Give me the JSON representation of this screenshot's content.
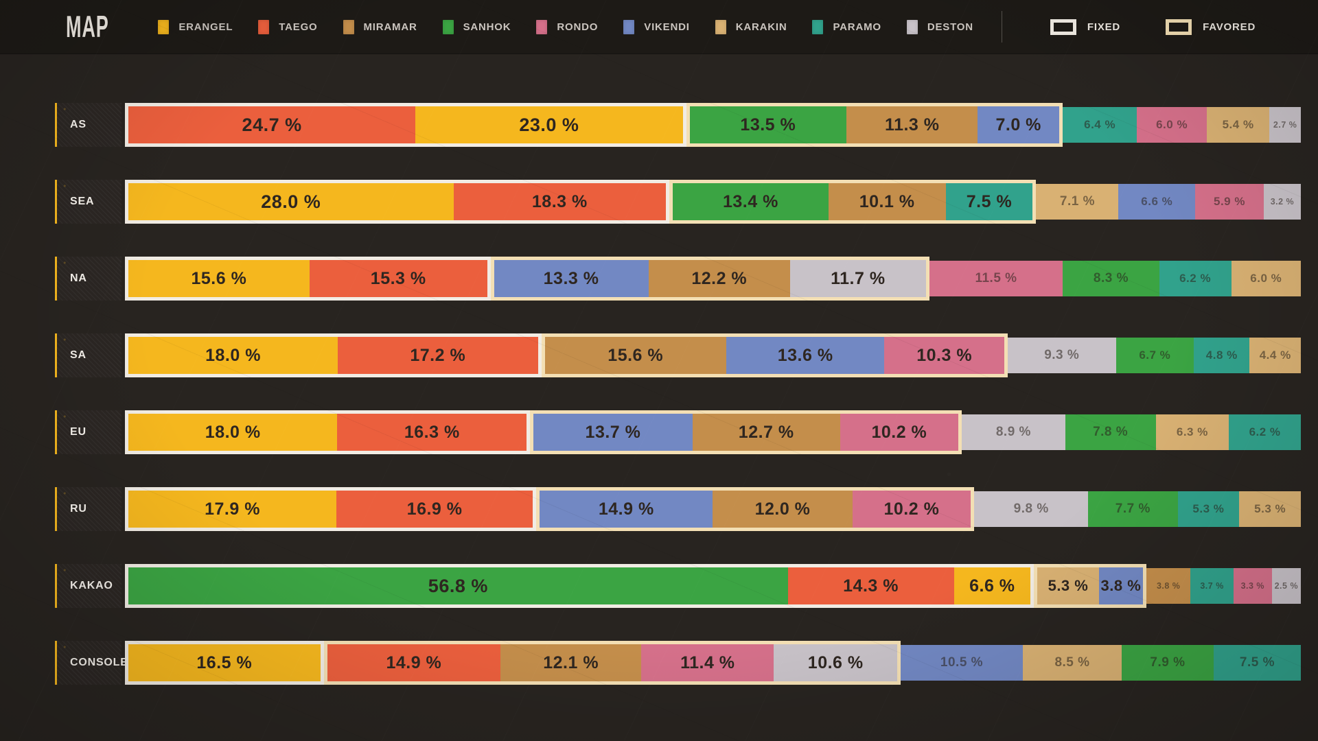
{
  "title": "MAP",
  "legend": {
    "maps": [
      {
        "name": "ERANGEL",
        "color": "#F5B71E"
      },
      {
        "name": "TAEGO",
        "color": "#EB5F3D"
      },
      {
        "name": "MIRAMAR",
        "color": "#C48E4B"
      },
      {
        "name": "SANHOK",
        "color": "#3BA443"
      },
      {
        "name": "RONDO",
        "color": "#D5708A"
      },
      {
        "name": "VIKENDI",
        "color": "#7288C3"
      },
      {
        "name": "KARAKIN",
        "color": "#D9B173"
      },
      {
        "name": "PARAMO",
        "color": "#31A28C"
      },
      {
        "name": "DESTON",
        "color": "#C8C2C8"
      }
    ],
    "indicators": [
      {
        "name": "FIXED",
        "key": "fixed",
        "border_color": "#F1ECE4"
      },
      {
        "name": "FAVORED",
        "key": "favored",
        "border_color": "#F3DFB4"
      }
    ]
  },
  "chart_data": {
    "type": "bar",
    "variant": "horizontal-stacked-100",
    "unit": "%",
    "legend_position": "top",
    "categories": [
      "AS",
      "SEA",
      "NA",
      "SA",
      "EU",
      "RU",
      "KAKAO",
      "CONSOLE"
    ],
    "series_names": [
      "ERANGEL",
      "TAEGO",
      "MIRAMAR",
      "SANHOK",
      "RONDO",
      "VIKENDI",
      "KARAKIN",
      "PARAMO",
      "DESTON"
    ],
    "group_meaning": {
      "fixed": "FIXED",
      "favored": "FAVORED",
      "none": "unhighlighted"
    },
    "rows": [
      {
        "region": "AS",
        "segments": [
          {
            "map": "TAEGO",
            "value": 24.7,
            "group": "fixed"
          },
          {
            "map": "ERANGEL",
            "value": 23.0,
            "group": "fixed"
          },
          {
            "map": "SANHOK",
            "value": 13.5,
            "group": "favored"
          },
          {
            "map": "MIRAMAR",
            "value": 11.3,
            "group": "favored"
          },
          {
            "map": "VIKENDI",
            "value": 7.0,
            "group": "favored"
          },
          {
            "map": "PARAMO",
            "value": 6.4,
            "group": "none"
          },
          {
            "map": "RONDO",
            "value": 6.0,
            "group": "none"
          },
          {
            "map": "KARAKIN",
            "value": 5.4,
            "group": "none"
          },
          {
            "map": "DESTON",
            "value": 2.7,
            "group": "none"
          }
        ]
      },
      {
        "region": "SEA",
        "segments": [
          {
            "map": "ERANGEL",
            "value": 28.0,
            "group": "fixed"
          },
          {
            "map": "TAEGO",
            "value": 18.3,
            "group": "fixed"
          },
          {
            "map": "SANHOK",
            "value": 13.4,
            "group": "favored"
          },
          {
            "map": "MIRAMAR",
            "value": 10.1,
            "group": "favored"
          },
          {
            "map": "PARAMO",
            "value": 7.5,
            "group": "favored"
          },
          {
            "map": "KARAKIN",
            "value": 7.1,
            "group": "none"
          },
          {
            "map": "VIKENDI",
            "value": 6.6,
            "group": "none"
          },
          {
            "map": "RONDO",
            "value": 5.9,
            "group": "none"
          },
          {
            "map": "DESTON",
            "value": 3.2,
            "group": "none"
          }
        ]
      },
      {
        "region": "NA",
        "segments": [
          {
            "map": "ERANGEL",
            "value": 15.6,
            "group": "fixed"
          },
          {
            "map": "TAEGO",
            "value": 15.3,
            "group": "fixed"
          },
          {
            "map": "VIKENDI",
            "value": 13.3,
            "group": "favored"
          },
          {
            "map": "MIRAMAR",
            "value": 12.2,
            "group": "favored"
          },
          {
            "map": "DESTON",
            "value": 11.7,
            "group": "favored"
          },
          {
            "map": "RONDO",
            "value": 11.5,
            "group": "none"
          },
          {
            "map": "SANHOK",
            "value": 8.3,
            "group": "none"
          },
          {
            "map": "PARAMO",
            "value": 6.2,
            "group": "none"
          },
          {
            "map": "KARAKIN",
            "value": 6.0,
            "group": "none"
          }
        ]
      },
      {
        "region": "SA",
        "segments": [
          {
            "map": "ERANGEL",
            "value": 18.0,
            "group": "fixed"
          },
          {
            "map": "TAEGO",
            "value": 17.2,
            "group": "fixed"
          },
          {
            "map": "MIRAMAR",
            "value": 15.6,
            "group": "favored"
          },
          {
            "map": "VIKENDI",
            "value": 13.6,
            "group": "favored"
          },
          {
            "map": "RONDO",
            "value": 10.3,
            "group": "favored"
          },
          {
            "map": "DESTON",
            "value": 9.3,
            "group": "none"
          },
          {
            "map": "SANHOK",
            "value": 6.7,
            "group": "none"
          },
          {
            "map": "PARAMO",
            "value": 4.8,
            "group": "none"
          },
          {
            "map": "KARAKIN",
            "value": 4.4,
            "group": "none"
          }
        ]
      },
      {
        "region": "EU",
        "segments": [
          {
            "map": "ERANGEL",
            "value": 18.0,
            "group": "fixed"
          },
          {
            "map": "TAEGO",
            "value": 16.3,
            "group": "fixed"
          },
          {
            "map": "VIKENDI",
            "value": 13.7,
            "group": "favored"
          },
          {
            "map": "MIRAMAR",
            "value": 12.7,
            "group": "favored"
          },
          {
            "map": "RONDO",
            "value": 10.2,
            "group": "favored"
          },
          {
            "map": "DESTON",
            "value": 8.9,
            "group": "none"
          },
          {
            "map": "SANHOK",
            "value": 7.8,
            "group": "none"
          },
          {
            "map": "KARAKIN",
            "value": 6.3,
            "group": "none"
          },
          {
            "map": "PARAMO",
            "value": 6.2,
            "group": "none"
          }
        ]
      },
      {
        "region": "RU",
        "segments": [
          {
            "map": "ERANGEL",
            "value": 17.9,
            "group": "fixed"
          },
          {
            "map": "TAEGO",
            "value": 16.9,
            "group": "fixed"
          },
          {
            "map": "VIKENDI",
            "value": 14.9,
            "group": "favored"
          },
          {
            "map": "MIRAMAR",
            "value": 12.0,
            "group": "favored"
          },
          {
            "map": "RONDO",
            "value": 10.2,
            "group": "favored"
          },
          {
            "map": "DESTON",
            "value": 9.8,
            "group": "none"
          },
          {
            "map": "SANHOK",
            "value": 7.7,
            "group": "none"
          },
          {
            "map": "PARAMO",
            "value": 5.3,
            "group": "none"
          },
          {
            "map": "KARAKIN",
            "value": 5.3,
            "group": "none"
          }
        ]
      },
      {
        "region": "KAKAO",
        "segments": [
          {
            "map": "SANHOK",
            "value": 56.8,
            "group": "fixed"
          },
          {
            "map": "TAEGO",
            "value": 14.3,
            "group": "fixed"
          },
          {
            "map": "ERANGEL",
            "value": 6.6,
            "group": "fixed"
          },
          {
            "map": "KARAKIN",
            "value": 5.3,
            "group": "favored"
          },
          {
            "map": "VIKENDI",
            "value": 3.8,
            "group": "favored"
          },
          {
            "map": "MIRAMAR",
            "value": 3.8,
            "group": "none"
          },
          {
            "map": "PARAMO",
            "value": 3.7,
            "group": "none"
          },
          {
            "map": "RONDO",
            "value": 3.3,
            "group": "none"
          },
          {
            "map": "DESTON",
            "value": 2.5,
            "group": "none"
          }
        ]
      },
      {
        "region": "CONSOLE",
        "segments": [
          {
            "map": "ERANGEL",
            "value": 16.5,
            "group": "fixed"
          },
          {
            "map": "TAEGO",
            "value": 14.9,
            "group": "favored"
          },
          {
            "map": "MIRAMAR",
            "value": 12.1,
            "group": "favored"
          },
          {
            "map": "RONDO",
            "value": 11.4,
            "group": "favored"
          },
          {
            "map": "DESTON",
            "value": 10.6,
            "group": "favored"
          },
          {
            "map": "VIKENDI",
            "value": 10.5,
            "group": "none"
          },
          {
            "map": "KARAKIN",
            "value": 8.5,
            "group": "none"
          },
          {
            "map": "SANHOK",
            "value": 7.9,
            "group": "none"
          },
          {
            "map": "PARAMO",
            "value": 7.5,
            "group": "none"
          }
        ]
      }
    ]
  }
}
